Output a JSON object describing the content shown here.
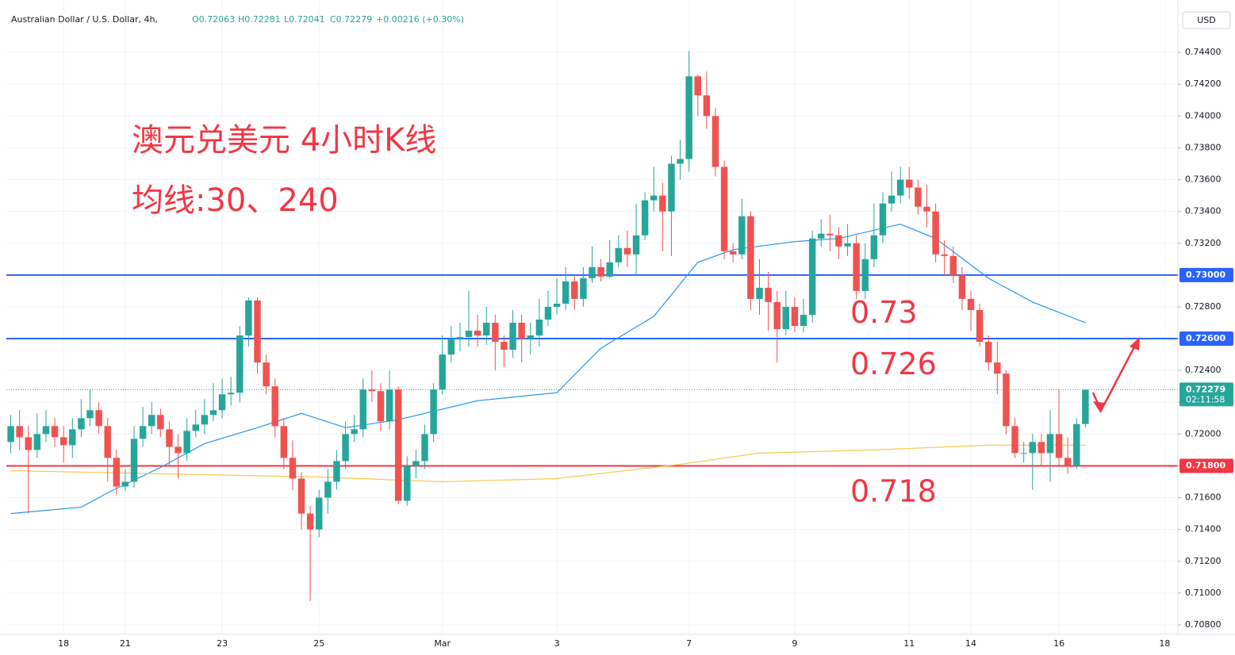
{
  "chart_data": {
    "type": "candlestick",
    "title": "Australian Dollar / U.S. Dollar, 4h,",
    "header_values": [
      "O0.72063",
      "H0.72281",
      "L0.72041",
      "C0.72279",
      "+0.00216 (+0.30%)"
    ],
    "annotations": [
      "澳元兑美元 4小时K线",
      "均线:30、240"
    ],
    "currency": "USD",
    "up_color": "#26a69a",
    "down_color": "#ef5350",
    "grid": true,
    "categories": [
      null,
      null,
      null,
      null,
      null,
      null,
      "18",
      null,
      null,
      null,
      null,
      null,
      null,
      "21",
      null,
      null,
      null,
      null,
      null,
      null,
      null,
      null,
      null,
      null,
      "23",
      null,
      null,
      null,
      null,
      null,
      null,
      null,
      null,
      null,
      null,
      "25",
      null,
      null,
      null,
      null,
      null,
      null,
      null,
      null,
      null,
      null,
      null,
      null,
      null,
      "Mar",
      null,
      null,
      null,
      null,
      null,
      null,
      null,
      null,
      null,
      null,
      null,
      null,
      "3",
      null,
      null,
      null,
      null,
      null,
      null,
      null,
      null,
      null,
      null,
      null,
      null,
      null,
      null,
      "7",
      null,
      null,
      null,
      null,
      null,
      null,
      null,
      null,
      null,
      null,
      null,
      "9",
      null,
      null,
      null,
      null,
      null,
      null,
      null,
      null,
      null,
      null,
      null,
      null,
      "11",
      null,
      null,
      null,
      null,
      null,
      null,
      "14",
      null,
      null,
      null,
      null,
      null,
      null,
      null,
      null,
      null,
      "16",
      null,
      null,
      null,
      null,
      null,
      null,
      null,
      null,
      null,
      null,
      null,
      "18",
      null
    ],
    "open": [
      0.7195,
      0.7205,
      0.7198,
      0.719,
      0.72,
      0.7205,
      0.7198,
      0.7193,
      0.7203,
      0.721,
      0.7215,
      0.7205,
      0.7185,
      0.7167,
      0.717,
      0.7197,
      0.7205,
      0.7212,
      0.7203,
      0.7192,
      0.7188,
      0.7202,
      0.7206,
      0.7212,
      0.7215,
      0.7225,
      0.7226,
      0.7262,
      0.7284,
      0.7245,
      0.723,
      0.7205,
      0.7185,
      0.7172,
      0.715,
      0.714,
      0.716,
      0.717,
      0.7183,
      0.72,
      0.7203,
      0.7228,
      0.7227,
      0.7208,
      0.7228,
      0.7158,
      0.718,
      0.7183,
      0.72,
      0.7228,
      0.725,
      0.726,
      0.7261,
      0.7265,
      0.7262,
      0.727,
      0.7258,
      0.7253,
      0.727,
      0.726,
      0.7262,
      0.7272,
      0.728,
      0.7282,
      0.7296,
      0.7285,
      0.7298,
      0.7305,
      0.7299,
      0.7308,
      0.7317,
      0.7313,
      0.7325,
      0.7347,
      0.735,
      0.734,
      0.737,
      0.7373,
      0.7425,
      0.7413,
      0.74,
      0.7368,
      0.7315,
      0.7313,
      0.7337,
      0.7285,
      0.7292,
      0.7283,
      0.7266,
      0.728,
      0.7268,
      0.7275,
      0.7323,
      0.7326,
      0.7325,
      0.7318,
      0.732,
      0.729,
      0.731,
      0.7325,
      0.7345,
      0.735,
      0.736,
      0.7355,
      0.7343,
      0.734,
      0.7313,
      0.7312,
      0.73,
      0.7285,
      0.7278,
      0.7258,
      0.7245,
      0.7238,
      0.7205,
      0.7188,
      0.7188,
      0.7195,
      0.7188,
      0.72,
      0.7185,
      0.718,
      0.72063,
      null,
      null,
      null,
      null,
      null,
      null,
      null,
      null,
      null,
      null
    ],
    "high": [
      0.7212,
      0.7215,
      0.7205,
      0.7213,
      0.7215,
      0.721,
      0.7205,
      0.721,
      0.7222,
      0.7228,
      0.722,
      0.721,
      0.719,
      0.7178,
      0.7205,
      0.7217,
      0.722,
      0.7216,
      0.7208,
      0.72,
      0.721,
      0.7215,
      0.7222,
      0.7232,
      0.7235,
      0.7236,
      0.7268,
      0.7286,
      0.7286,
      0.725,
      0.7235,
      0.721,
      0.7196,
      0.7176,
      0.7155,
      0.7165,
      0.7178,
      0.719,
      0.7208,
      0.7212,
      0.7235,
      0.724,
      0.7232,
      0.724,
      0.723,
      0.7186,
      0.719,
      0.7206,
      0.7232,
      0.7262,
      0.7268,
      0.727,
      0.729,
      0.7275,
      0.728,
      0.7275,
      0.7262,
      0.7278,
      0.7275,
      0.727,
      0.7285,
      0.729,
      0.7298,
      0.7305,
      0.73,
      0.7305,
      0.7318,
      0.731,
      0.7322,
      0.7325,
      0.7328,
      0.7345,
      0.7352,
      0.7368,
      0.7358,
      0.7375,
      0.7385,
      0.7441,
      0.7426,
      0.7428,
      0.7405,
      0.7372,
      0.732,
      0.7348,
      0.734,
      0.731,
      0.7302,
      0.729,
      0.729,
      0.7286,
      0.7285,
      0.7328,
      0.7335,
      0.7338,
      0.733,
      0.7332,
      0.7325,
      0.732,
      0.7345,
      0.7352,
      0.7365,
      0.7368,
      0.7368,
      0.736,
      0.7357,
      0.7345,
      0.7322,
      0.7318,
      0.7305,
      0.729,
      0.7282,
      0.7262,
      0.7258,
      0.724,
      0.721,
      0.7195,
      0.72,
      0.72,
      0.7215,
      0.7228,
      0.7198,
      0.721,
      0.72281,
      null,
      null,
      null,
      null,
      null,
      null,
      null,
      null,
      null,
      null
    ],
    "low": [
      0.7188,
      0.719,
      0.715,
      0.7185,
      0.7195,
      0.7192,
      0.7182,
      0.7185,
      0.7198,
      0.7205,
      0.72,
      0.717,
      0.7162,
      0.7164,
      0.7166,
      0.7192,
      0.72,
      0.7198,
      0.718,
      0.7172,
      0.7183,
      0.7198,
      0.72,
      0.7208,
      0.721,
      0.7218,
      0.722,
      0.7255,
      0.7238,
      0.7225,
      0.7198,
      0.7178,
      0.7165,
      0.714,
      0.7095,
      0.7135,
      0.715,
      0.7165,
      0.7178,
      0.7195,
      0.7198,
      0.722,
      0.7202,
      0.7203,
      0.7156,
      0.7155,
      0.7172,
      0.7178,
      0.7195,
      0.7225,
      0.7245,
      0.7252,
      0.7255,
      0.7255,
      0.7256,
      0.724,
      0.7242,
      0.7248,
      0.7245,
      0.725,
      0.7255,
      0.7268,
      0.7275,
      0.7278,
      0.7278,
      0.728,
      0.7295,
      0.7296,
      0.7298,
      0.7305,
      0.7305,
      0.73,
      0.7322,
      0.734,
      0.7315,
      0.7312,
      0.736,
      0.7365,
      0.74,
      0.7392,
      0.7362,
      0.731,
      0.7308,
      0.731,
      0.7278,
      0.7275,
      0.7265,
      0.7245,
      0.7262,
      0.7264,
      0.7264,
      0.727,
      0.7318,
      0.7315,
      0.731,
      0.7312,
      0.7285,
      0.7285,
      0.7305,
      0.732,
      0.734,
      0.7345,
      0.7348,
      0.7338,
      0.733,
      0.7308,
      0.73,
      0.7295,
      0.7278,
      0.7265,
      0.7255,
      0.724,
      0.7225,
      0.72,
      0.7185,
      0.7182,
      0.7165,
      0.718,
      0.717,
      0.718,
      0.7175,
      0.7178,
      0.72041,
      null,
      null,
      null,
      null,
      null,
      null,
      null,
      null,
      null,
      null
    ],
    "close": [
      0.7205,
      0.7198,
      0.719,
      0.72,
      0.7205,
      0.7198,
      0.7193,
      0.7203,
      0.721,
      0.7215,
      0.7205,
      0.7185,
      0.7167,
      0.717,
      0.7197,
      0.7205,
      0.7212,
      0.7203,
      0.7192,
      0.7188,
      0.7202,
      0.7206,
      0.7212,
      0.7215,
      0.7225,
      0.7226,
      0.7262,
      0.7284,
      0.7245,
      0.723,
      0.7205,
      0.7185,
      0.7172,
      0.715,
      0.714,
      0.716,
      0.717,
      0.7183,
      0.72,
      0.7203,
      0.7228,
      0.7227,
      0.7208,
      0.7228,
      0.7158,
      0.718,
      0.7183,
      0.72,
      0.7228,
      0.725,
      0.726,
      0.7261,
      0.7265,
      0.7262,
      0.727,
      0.7258,
      0.7253,
      0.727,
      0.726,
      0.7262,
      0.7272,
      0.728,
      0.7282,
      0.7296,
      0.7285,
      0.7298,
      0.7305,
      0.7299,
      0.7308,
      0.7317,
      0.7313,
      0.7325,
      0.7347,
      0.735,
      0.734,
      0.737,
      0.7373,
      0.7425,
      0.7413,
      0.74,
      0.7368,
      0.7315,
      0.7313,
      0.7337,
      0.7285,
      0.7292,
      0.7283,
      0.7266,
      0.728,
      0.7268,
      0.7275,
      0.7323,
      0.7326,
      0.7325,
      0.7318,
      0.732,
      0.729,
      0.731,
      0.7325,
      0.7345,
      0.735,
      0.736,
      0.7355,
      0.7343,
      0.734,
      0.7313,
      0.7312,
      0.73,
      0.7285,
      0.7278,
      0.7258,
      0.7245,
      0.7238,
      0.7205,
      0.7188,
      0.7188,
      0.7195,
      0.7188,
      0.72,
      0.7185,
      0.718,
      0.72063,
      0.72279,
      null,
      null,
      null,
      null,
      null,
      null,
      null,
      null,
      null,
      null
    ],
    "lines": [
      {
        "color": "#2196f3",
        "x": [
          0,
          8,
          11,
          17,
          22,
          28,
          33,
          38,
          44,
          53,
          62,
          67,
          73,
          78,
          82,
          89,
          94,
          101,
          105,
          111,
          116,
          122
        ],
        "values": [
          0.715,
          0.7154,
          0.7163,
          0.7179,
          0.7194,
          0.7204,
          0.7213,
          0.7204,
          0.7209,
          0.7221,
          0.7226,
          0.7254,
          0.7274,
          0.7308,
          0.7316,
          0.7321,
          0.7323,
          0.7332,
          0.7323,
          0.7298,
          0.7283,
          0.727
        ]
      },
      {
        "color": "#f9c74f",
        "x": [
          0,
          17,
          35,
          49,
          62,
          76,
          85,
          98,
          111,
          122
        ],
        "values": [
          0.7177,
          0.7175,
          0.7173,
          0.717,
          0.7172,
          0.7181,
          0.7188,
          0.719,
          0.7193,
          0.7193
        ]
      }
    ],
    "levels": [
      {
        "value": 0.73,
        "label": "0.73000",
        "annotation": "0.73",
        "color": "#2962ff"
      },
      {
        "value": 0.726,
        "label": "0.72600",
        "annotation": "0.726",
        "color": "#2962ff"
      },
      {
        "value": 0.718,
        "label": "0.71800",
        "annotation": "0.718",
        "color": "#f23645"
      }
    ],
    "last_price": {
      "value": 0.72279,
      "label": "0.72279",
      "countdown": "02:11:58"
    },
    "ylim": [
      0.7074,
      0.7469
    ],
    "yticks": [
      {
        "value": 0.708,
        "label": "0.70800"
      },
      {
        "value": 0.71,
        "label": "0.71000"
      },
      {
        "value": 0.712,
        "label": "0.71200"
      },
      {
        "value": 0.714,
        "label": "0.71400"
      },
      {
        "value": 0.716,
        "label": "0.71600"
      },
      {
        "value": 0.718,
        "label": "0.71800"
      },
      {
        "value": 0.72,
        "label": "0.72000"
      },
      {
        "value": 0.722,
        "label": "0.72200"
      },
      {
        "value": 0.724,
        "label": "0.72400"
      },
      {
        "value": 0.726,
        "label": "0.72600"
      },
      {
        "value": 0.728,
        "label": "0.72800"
      },
      {
        "value": 0.73,
        "label": "0.73000"
      },
      {
        "value": 0.732,
        "label": "0.73200"
      },
      {
        "value": 0.734,
        "label": "0.73400"
      },
      {
        "value": 0.736,
        "label": "0.73600"
      },
      {
        "value": 0.738,
        "label": "0.73800"
      },
      {
        "value": 0.74,
        "label": "0.74000"
      },
      {
        "value": 0.742,
        "label": "0.74200"
      },
      {
        "value": 0.744,
        "label": "0.74400"
      }
    ]
  }
}
